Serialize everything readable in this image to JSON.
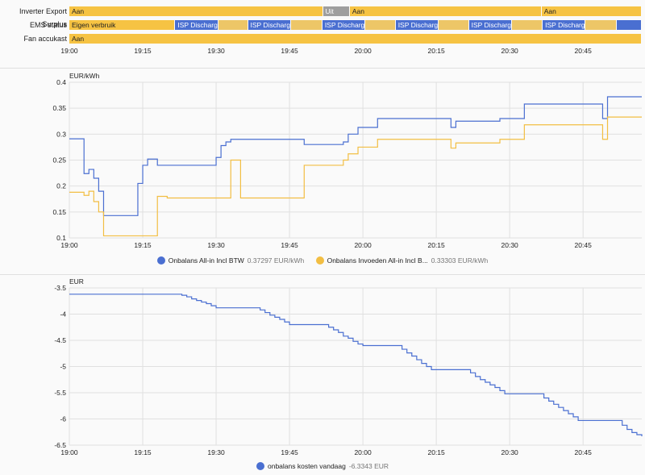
{
  "timeline": {
    "rows": [
      {
        "label": "Inverter Export Surplus",
        "segments": [
          {
            "start": 0,
            "end": 0.443,
            "text": "Aan",
            "color": "#f6c343"
          },
          {
            "start": 0.443,
            "end": 0.49,
            "text": "Uit",
            "color": "#9e9e9e"
          },
          {
            "start": 0.49,
            "end": 0.825,
            "text": "Aan",
            "color": "#f6c343"
          },
          {
            "start": 0.825,
            "end": 1,
            "text": "Aan",
            "color": "#f6c343"
          }
        ]
      },
      {
        "label": "EMS status",
        "segments": [
          {
            "start": 0,
            "end": 0.185,
            "text": "Eigen verbruik",
            "color": "#f6c343"
          },
          {
            "start": 0.185,
            "end": 0.26,
            "text": "ISP Discharge",
            "color": "#4a6fd1"
          },
          {
            "start": 0.26,
            "end": 0.312,
            "text": "",
            "color": "#edc667"
          },
          {
            "start": 0.312,
            "end": 0.387,
            "text": "ISP Discharge",
            "color": "#4a6fd1"
          },
          {
            "start": 0.387,
            "end": 0.442,
            "text": "",
            "color": "#edc667"
          },
          {
            "start": 0.442,
            "end": 0.517,
            "text": "ISP Discharge",
            "color": "#4a6fd1"
          },
          {
            "start": 0.517,
            "end": 0.57,
            "text": "",
            "color": "#edc667"
          },
          {
            "start": 0.57,
            "end": 0.645,
            "text": "ISP Discharge",
            "color": "#4a6fd1"
          },
          {
            "start": 0.645,
            "end": 0.698,
            "text": "",
            "color": "#edc667"
          },
          {
            "start": 0.698,
            "end": 0.773,
            "text": "ISP Discharge",
            "color": "#4a6fd1"
          },
          {
            "start": 0.773,
            "end": 0.827,
            "text": "",
            "color": "#edc667"
          },
          {
            "start": 0.827,
            "end": 0.902,
            "text": "ISP Discharge",
            "color": "#4a6fd1"
          },
          {
            "start": 0.902,
            "end": 0.956,
            "text": "",
            "color": "#edc667"
          },
          {
            "start": 0.956,
            "end": 1,
            "text": "",
            "color": "#4a6fd1"
          }
        ]
      },
      {
        "label": "Fan accukast",
        "segments": [
          {
            "start": 0,
            "end": 1,
            "text": "Aan",
            "color": "#f6c343"
          }
        ]
      }
    ],
    "ticks": [
      "19:00",
      "19:15",
      "19:30",
      "19:45",
      "20:00",
      "20:15",
      "20:30",
      "20:45"
    ]
  },
  "chart_data": [
    {
      "type": "line",
      "unit": "EUR/kWh",
      "ylim": [
        0.1,
        0.4
      ],
      "yticks": [
        0.1,
        0.15,
        0.2,
        0.25,
        0.3,
        0.35,
        0.4
      ],
      "xticks": [
        "19:00",
        "19:15",
        "19:30",
        "19:45",
        "20:00",
        "20:15",
        "20:30",
        "20:45"
      ],
      "xlim_minutes": [
        0,
        117
      ],
      "grid": true,
      "legend_position": "bottom",
      "series": [
        {
          "name": "Onbalans All-in Incl BTW",
          "legend_value": "0.37297 EUR/kWh",
          "color": "#4a6fd1",
          "step_points": [
            [
              0,
              0.291
            ],
            [
              3,
              0.224
            ],
            [
              4,
              0.232
            ],
            [
              5,
              0.215
            ],
            [
              6,
              0.19
            ],
            [
              7,
              0.143
            ],
            [
              14,
              0.205
            ],
            [
              15,
              0.24
            ],
            [
              16,
              0.252
            ],
            [
              18,
              0.24
            ],
            [
              30,
              0.255
            ],
            [
              31,
              0.278
            ],
            [
              32,
              0.285
            ],
            [
              33,
              0.29
            ],
            [
              48,
              0.28
            ],
            [
              56,
              0.285
            ],
            [
              57,
              0.3
            ],
            [
              59,
              0.313
            ],
            [
              63,
              0.33
            ],
            [
              78,
              0.313
            ],
            [
              79,
              0.325
            ],
            [
              84,
              0.325
            ],
            [
              88,
              0.33
            ],
            [
              93,
              0.358
            ],
            [
              109,
              0.33
            ],
            [
              110,
              0.372
            ],
            [
              117,
              0.372
            ]
          ]
        },
        {
          "name": "Onbalans Invoeden All-in Incl B...",
          "legend_value": "0.33303 EUR/kWh",
          "color": "#f2be43",
          "step_points": [
            [
              0,
              0.188
            ],
            [
              3,
              0.182
            ],
            [
              4,
              0.19
            ],
            [
              5,
              0.17
            ],
            [
              6,
              0.15
            ],
            [
              7,
              0.104
            ],
            [
              18,
              0.18
            ],
            [
              20,
              0.177
            ],
            [
              33,
              0.25
            ],
            [
              35,
              0.177
            ],
            [
              48,
              0.24
            ],
            [
              56,
              0.25
            ],
            [
              57,
              0.262
            ],
            [
              59,
              0.275
            ],
            [
              63,
              0.29
            ],
            [
              78,
              0.273
            ],
            [
              79,
              0.283
            ],
            [
              84,
              0.283
            ],
            [
              88,
              0.29
            ],
            [
              93,
              0.318
            ],
            [
              109,
              0.29
            ],
            [
              110,
              0.333
            ],
            [
              117,
              0.333
            ]
          ]
        }
      ]
    },
    {
      "type": "line",
      "unit": "EUR",
      "ylim": [
        -6.5,
        -3.5
      ],
      "yticks": [
        -3.5,
        -4,
        -4.5,
        -5,
        -5.5,
        -6,
        -6.5
      ],
      "xticks": [
        "19:00",
        "19:15",
        "19:30",
        "19:45",
        "20:00",
        "20:15",
        "20:30",
        "20:45"
      ],
      "xlim_minutes": [
        0,
        117
      ],
      "grid": true,
      "legend_position": "bottom",
      "series": [
        {
          "name": "onbalans kosten vandaag",
          "legend_value": "-6.3343 EUR",
          "color": "#4a6fd1",
          "step_points": [
            [
              0,
              -3.62
            ],
            [
              22,
              -3.62
            ],
            [
              23,
              -3.64
            ],
            [
              24,
              -3.67
            ],
            [
              25,
              -3.71
            ],
            [
              26,
              -3.74
            ],
            [
              27,
              -3.77
            ],
            [
              28,
              -3.8
            ],
            [
              29,
              -3.84
            ],
            [
              30,
              -3.88
            ],
            [
              38,
              -3.88
            ],
            [
              39,
              -3.92
            ],
            [
              40,
              -3.97
            ],
            [
              41,
              -4.02
            ],
            [
              42,
              -4.06
            ],
            [
              43,
              -4.1
            ],
            [
              44,
              -4.15
            ],
            [
              45,
              -4.2
            ],
            [
              52,
              -4.2
            ],
            [
              53,
              -4.25
            ],
            [
              54,
              -4.3
            ],
            [
              55,
              -4.35
            ],
            [
              56,
              -4.42
            ],
            [
              57,
              -4.46
            ],
            [
              58,
              -4.52
            ],
            [
              59,
              -4.57
            ],
            [
              60,
              -4.6
            ],
            [
              67,
              -4.6
            ],
            [
              68,
              -4.67
            ],
            [
              69,
              -4.74
            ],
            [
              70,
              -4.8
            ],
            [
              71,
              -4.87
            ],
            [
              72,
              -4.94
            ],
            [
              73,
              -5.0
            ],
            [
              74,
              -5.06
            ],
            [
              81,
              -5.06
            ],
            [
              82,
              -5.12
            ],
            [
              83,
              -5.19
            ],
            [
              84,
              -5.25
            ],
            [
              85,
              -5.3
            ],
            [
              86,
              -5.35
            ],
            [
              87,
              -5.4
            ],
            [
              88,
              -5.46
            ],
            [
              89,
              -5.52
            ],
            [
              96,
              -5.52
            ],
            [
              97,
              -5.6
            ],
            [
              98,
              -5.66
            ],
            [
              99,
              -5.72
            ],
            [
              100,
              -5.78
            ],
            [
              101,
              -5.84
            ],
            [
              102,
              -5.9
            ],
            [
              103,
              -5.96
            ],
            [
              104,
              -6.03
            ],
            [
              112,
              -6.03
            ],
            [
              113,
              -6.12
            ],
            [
              114,
              -6.2
            ],
            [
              115,
              -6.26
            ],
            [
              116,
              -6.3
            ],
            [
              117,
              -6.33
            ]
          ]
        }
      ]
    }
  ]
}
